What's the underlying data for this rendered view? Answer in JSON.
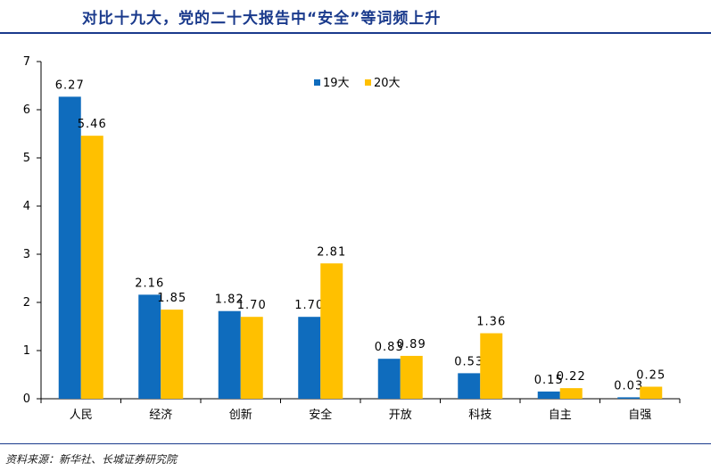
{
  "header": {
    "title": "对比十九大，党的二十大报告中“安全”等词频上升"
  },
  "footer": {
    "source": "资料来源：新华社、长城证券研究院"
  },
  "colors": {
    "series_19": "#0f6cbd",
    "series_20": "#ffc000",
    "title": "#1a3a8c"
  },
  "chart_data": {
    "type": "bar",
    "title": "",
    "xlabel": "",
    "ylabel": "",
    "categories": [
      "人民",
      "经济",
      "创新",
      "安全",
      "开放",
      "科技",
      "自主",
      "自强"
    ],
    "series": [
      {
        "name": "19大",
        "values": [
          6.27,
          2.16,
          1.82,
          1.7,
          0.83,
          0.53,
          0.15,
          0.03
        ],
        "labels": [
          "6.27",
          "2.16",
          "1.82",
          "1.70",
          "0.83",
          "0.53",
          "0.15",
          "0.03"
        ]
      },
      {
        "name": "20大",
        "values": [
          5.46,
          1.85,
          1.7,
          2.81,
          0.89,
          1.36,
          0.22,
          0.25
        ],
        "labels": [
          "5.46",
          "1.85",
          "1.70",
          "2.81",
          "0.89",
          "1.36",
          "0.22",
          "0.25"
        ]
      }
    ],
    "ylim": [
      0,
      7
    ],
    "yticks": [
      "0",
      "1",
      "2",
      "3",
      "4",
      "5",
      "6",
      "7"
    ],
    "grid": false,
    "legend": "top-center"
  }
}
